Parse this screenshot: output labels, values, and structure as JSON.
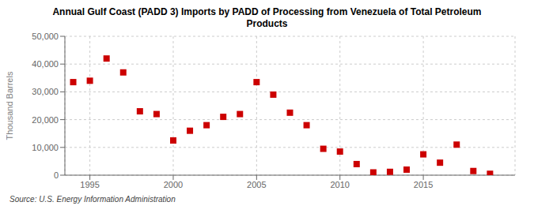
{
  "chart_data": {
    "type": "scatter",
    "title": "Annual Gulf Coast (PADD 3) Imports by PADD of Processing from Venezuela of Total Petroleum\nProducts",
    "ylabel": "Thousand Barrels",
    "source": "Source: U.S. Energy Information Administration",
    "x": [
      1994,
      1995,
      1996,
      1997,
      1998,
      1999,
      2000,
      2001,
      2002,
      2003,
      2004,
      2005,
      2006,
      2007,
      2008,
      2009,
      2010,
      2011,
      2012,
      2013,
      2014,
      2015,
      2016,
      2017,
      2018,
      2019
    ],
    "values": [
      33500,
      34000,
      42000,
      37000,
      23000,
      22000,
      12500,
      16000,
      18000,
      21000,
      22000,
      33500,
      29000,
      22500,
      18000,
      9500,
      8500,
      4000,
      1000,
      1200,
      2000,
      7500,
      4500,
      11000,
      1500,
      500
    ],
    "color": "#cc0000",
    "marker": "square",
    "grid": true,
    "xlim": [
      1993.5,
      2020.5
    ],
    "xticks": [
      1995,
      2000,
      2005,
      2010,
      2015
    ],
    "ylim": [
      0,
      50000
    ],
    "yticks": [
      0,
      {
        "value": 10000,
        "label": "10,000"
      },
      {
        "value": 20000,
        "label": "20,000"
      },
      {
        "value": 30000,
        "label": "30,000"
      },
      {
        "value": 40000,
        "label": "40,000"
      },
      {
        "value": 50000,
        "label": "50,000"
      }
    ]
  }
}
